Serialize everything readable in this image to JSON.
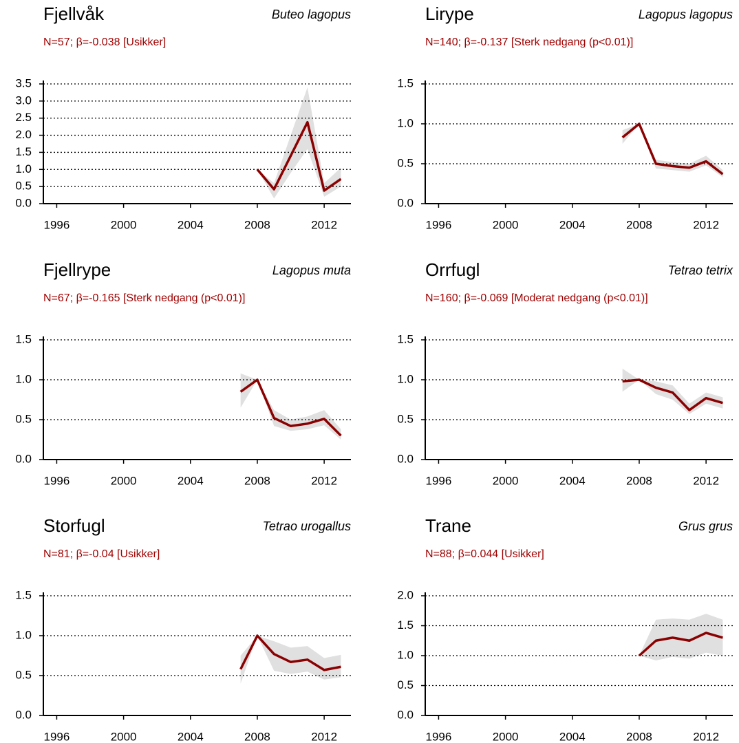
{
  "chart_data": [
    {
      "type": "line",
      "title": "Fjellvåk",
      "subtitle": "Buteo lagopus",
      "annotation": "N=57;  β=-0.038  [Usikker]",
      "color": "#8b0000",
      "band_color": "#e0e0e0",
      "x": [
        2008,
        2009,
        2010,
        2011,
        2012,
        2013
      ],
      "values": [
        1.0,
        0.42,
        1.4,
        2.38,
        0.38,
        0.72
      ],
      "lower": [
        1.0,
        0.15,
        0.9,
        1.6,
        0.2,
        0.5
      ],
      "upper": [
        1.0,
        0.6,
        2.0,
        3.4,
        0.6,
        1.05
      ],
      "xlim": [
        1995.2,
        2013.6
      ],
      "xticks": [
        1996,
        2000,
        2004,
        2008,
        2012
      ],
      "ylim": [
        0,
        3.5
      ],
      "yticks": [
        {
          "value": 0,
          "label": "0.0"
        },
        {
          "value": 0.5,
          "label": "0.5"
        },
        {
          "value": 1,
          "label": "1.0"
        },
        {
          "value": 1.5,
          "label": "1.5"
        },
        {
          "value": 2,
          "label": "2.0"
        },
        {
          "value": 2.5,
          "label": "2.5"
        },
        {
          "value": 3,
          "label": "3.0"
        },
        {
          "value": 3.5,
          "label": "3.5"
        }
      ],
      "grid": true
    },
    {
      "type": "line",
      "title": "Lirype",
      "subtitle": "Lagopus lagopus",
      "annotation": "N=140;  β=-0.137  [Sterk nedgang (p<0.01)]",
      "color": "#8b0000",
      "band_color": "#e0e0e0",
      "x": [
        2007,
        2008,
        2009,
        2010,
        2011,
        2012,
        2013
      ],
      "values": [
        0.83,
        1.0,
        0.5,
        0.47,
        0.45,
        0.53,
        0.37
      ],
      "lower": [
        0.75,
        1.0,
        0.44,
        0.42,
        0.4,
        0.48,
        0.33
      ],
      "upper": [
        0.92,
        1.0,
        0.55,
        0.52,
        0.5,
        0.6,
        0.42
      ],
      "xlim": [
        1995.2,
        2013.6
      ],
      "xticks": [
        1996,
        2000,
        2004,
        2008,
        2012
      ],
      "ylim": [
        0,
        1.5
      ],
      "yticks": [
        {
          "value": 0,
          "label": "0.0"
        },
        {
          "value": 0.5,
          "label": "0.5"
        },
        {
          "value": 1,
          "label": "1.0"
        },
        {
          "value": 1.5,
          "label": "1.5"
        }
      ],
      "grid": true
    },
    {
      "type": "line",
      "title": "Fjellrype",
      "subtitle": "Lagopus muta",
      "annotation": "N=67;  β=-0.165  [Sterk nedgang (p<0.01)]",
      "color": "#8b0000",
      "band_color": "#e0e0e0",
      "x": [
        2007,
        2008,
        2009,
        2010,
        2011,
        2012,
        2013
      ],
      "values": [
        0.85,
        1.0,
        0.52,
        0.42,
        0.45,
        0.51,
        0.3
      ],
      "lower": [
        0.65,
        1.0,
        0.42,
        0.36,
        0.38,
        0.43,
        0.25
      ],
      "upper": [
        1.08,
        1.0,
        0.62,
        0.5,
        0.54,
        0.62,
        0.38
      ],
      "xlim": [
        1995.2,
        2013.6
      ],
      "xticks": [
        1996,
        2000,
        2004,
        2008,
        2012
      ],
      "ylim": [
        0,
        1.5
      ],
      "yticks": [
        {
          "value": 0,
          "label": "0.0"
        },
        {
          "value": 0.5,
          "label": "0.5"
        },
        {
          "value": 1,
          "label": "1.0"
        },
        {
          "value": 1.5,
          "label": "1.5"
        }
      ],
      "grid": true
    },
    {
      "type": "line",
      "title": "Orrfugl",
      "subtitle": "Tetrao tetrix",
      "annotation": "N=160;  β=-0.069  [Moderat nedgang (p<0.01)]",
      "color": "#8b0000",
      "band_color": "#e0e0e0",
      "x": [
        2007,
        2008,
        2009,
        2010,
        2011,
        2012,
        2013
      ],
      "values": [
        0.98,
        1.0,
        0.9,
        0.84,
        0.62,
        0.77,
        0.71
      ],
      "lower": [
        0.85,
        1.0,
        0.82,
        0.75,
        0.57,
        0.7,
        0.64
      ],
      "upper": [
        1.14,
        1.0,
        0.98,
        0.93,
        0.7,
        0.84,
        0.78
      ],
      "xlim": [
        1995.2,
        2013.6
      ],
      "xticks": [
        1996,
        2000,
        2004,
        2008,
        2012
      ],
      "ylim": [
        0,
        1.5
      ],
      "yticks": [
        {
          "value": 0,
          "label": "0.0"
        },
        {
          "value": 0.5,
          "label": "0.5"
        },
        {
          "value": 1,
          "label": "1.0"
        },
        {
          "value": 1.5,
          "label": "1.5"
        }
      ],
      "grid": true
    },
    {
      "type": "line",
      "title": "Storfugl",
      "subtitle": "Tetrao urogallus",
      "annotation": "N=81;  β=-0.04  [Usikker]",
      "color": "#8b0000",
      "band_color": "#e0e0e0",
      "x": [
        2007,
        2008,
        2009,
        2010,
        2011,
        2012,
        2013
      ],
      "values": [
        0.58,
        1.0,
        0.77,
        0.67,
        0.7,
        0.57,
        0.61
      ],
      "lower": [
        0.4,
        1.0,
        0.56,
        0.52,
        0.55,
        0.45,
        0.48
      ],
      "upper": [
        0.75,
        1.0,
        0.93,
        0.85,
        0.87,
        0.72,
        0.76
      ],
      "xlim": [
        1995.2,
        2013.6
      ],
      "xticks": [
        1996,
        2000,
        2004,
        2008,
        2012
      ],
      "ylim": [
        0,
        1.5
      ],
      "yticks": [
        {
          "value": 0,
          "label": "0.0"
        },
        {
          "value": 0.5,
          "label": "0.5"
        },
        {
          "value": 1,
          "label": "1.0"
        },
        {
          "value": 1.5,
          "label": "1.5"
        }
      ],
      "grid": true
    },
    {
      "type": "line",
      "title": "Trane",
      "subtitle": "Grus grus",
      "annotation": "N=88;  β=0.044  [Usikker]",
      "color": "#8b0000",
      "band_color": "#e0e0e0",
      "x": [
        2008,
        2009,
        2010,
        2011,
        2012,
        2013
      ],
      "values": [
        1.0,
        1.25,
        1.3,
        1.25,
        1.38,
        1.3
      ],
      "lower": [
        1.0,
        0.92,
        0.98,
        0.95,
        1.05,
        1.0
      ],
      "upper": [
        1.0,
        1.6,
        1.62,
        1.6,
        1.7,
        1.6
      ],
      "xlim": [
        1995.2,
        2013.6
      ],
      "xticks": [
        1996,
        2000,
        2004,
        2008,
        2012
      ],
      "ylim": [
        0,
        2
      ],
      "yticks": [
        {
          "value": 0,
          "label": "0.0"
        },
        {
          "value": 0.5,
          "label": "0.5"
        },
        {
          "value": 1,
          "label": "1.0"
        },
        {
          "value": 1.5,
          "label": "1.5"
        },
        {
          "value": 2,
          "label": "2.0"
        }
      ],
      "grid": true
    }
  ]
}
